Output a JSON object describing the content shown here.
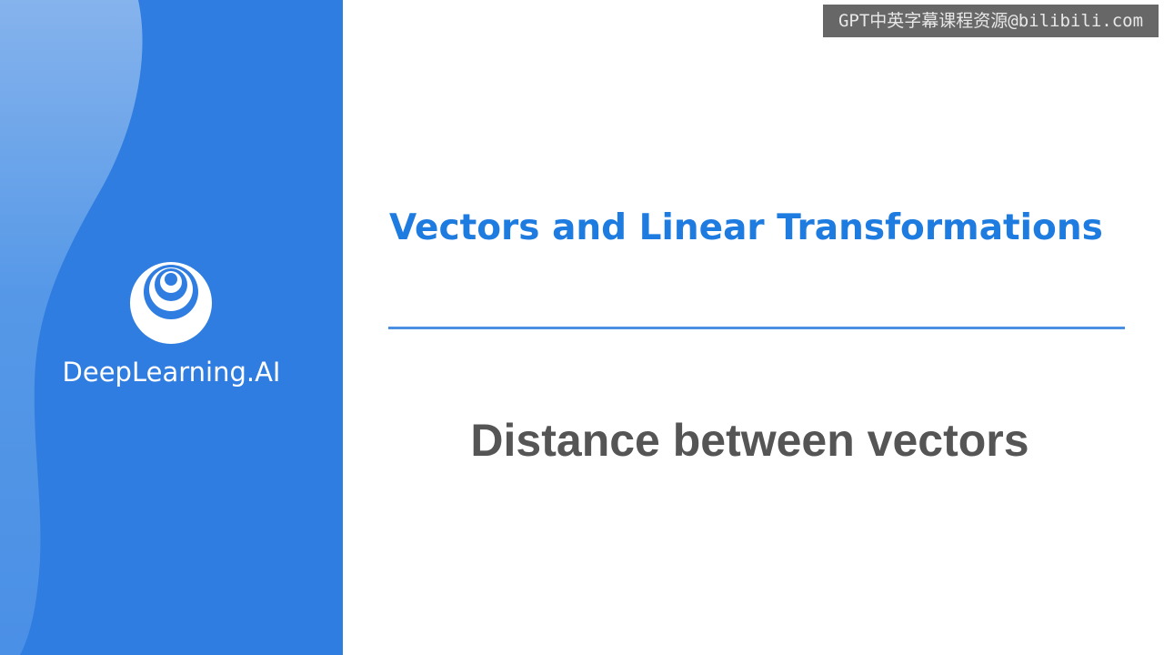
{
  "watermark": "GPT中英字幕课程资源@bilibili.com",
  "brand": {
    "name": "DeepLearning.AI",
    "logo_icon": "deeplearning-ai-logo-icon"
  },
  "course_title": "Vectors and Linear Transformations",
  "lesson_title": "Distance between vectors",
  "colors": {
    "panel_blue": "#2f7de1",
    "title_blue": "#1e7be0",
    "divider_blue": "#4a8fe2",
    "lesson_gray": "#555555"
  }
}
